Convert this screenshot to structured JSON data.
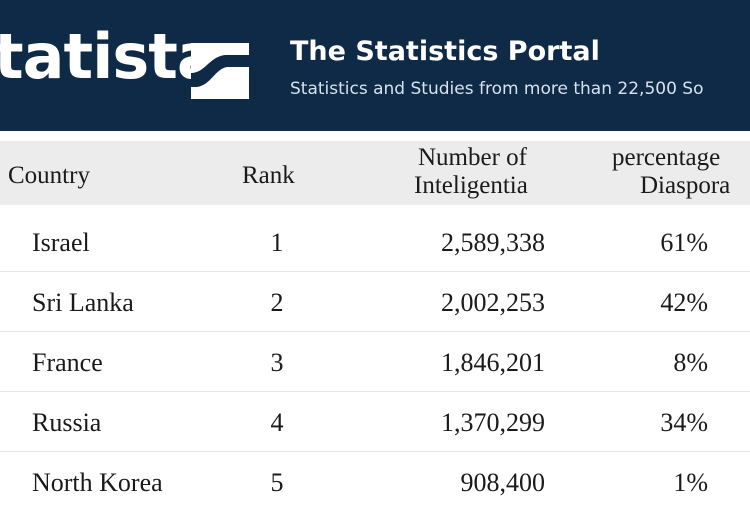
{
  "header": {
    "logo_text": "tatista",
    "title": "The Statistics Portal",
    "subtitle": "Statistics and Studies from more than 22,500 So"
  },
  "table": {
    "columns": [
      {
        "line1": "Country",
        "line2": ""
      },
      {
        "line1": "Rank",
        "line2": ""
      },
      {
        "line1": "Number of",
        "line2": "Inteligentia"
      },
      {
        "line1": "percentage",
        "line2": "Diaspora"
      }
    ],
    "rows": [
      {
        "country": "Israel",
        "rank": "1",
        "number": "2,589,338",
        "percentage": "61%"
      },
      {
        "country": "Sri Lanka",
        "rank": "2",
        "number": "2,002,253",
        "percentage": "42%"
      },
      {
        "country": "France",
        "rank": "3",
        "number": "1,846,201",
        "percentage": "8%"
      },
      {
        "country": "Russia",
        "rank": "4",
        "number": "1,370,299",
        "percentage": "34%"
      },
      {
        "country": "North Korea",
        "rank": "5",
        "number": "908,400",
        "percentage": "1%"
      }
    ]
  },
  "colors": {
    "header_bg": "#0e2a47",
    "header_row_bg": "#ececec"
  }
}
